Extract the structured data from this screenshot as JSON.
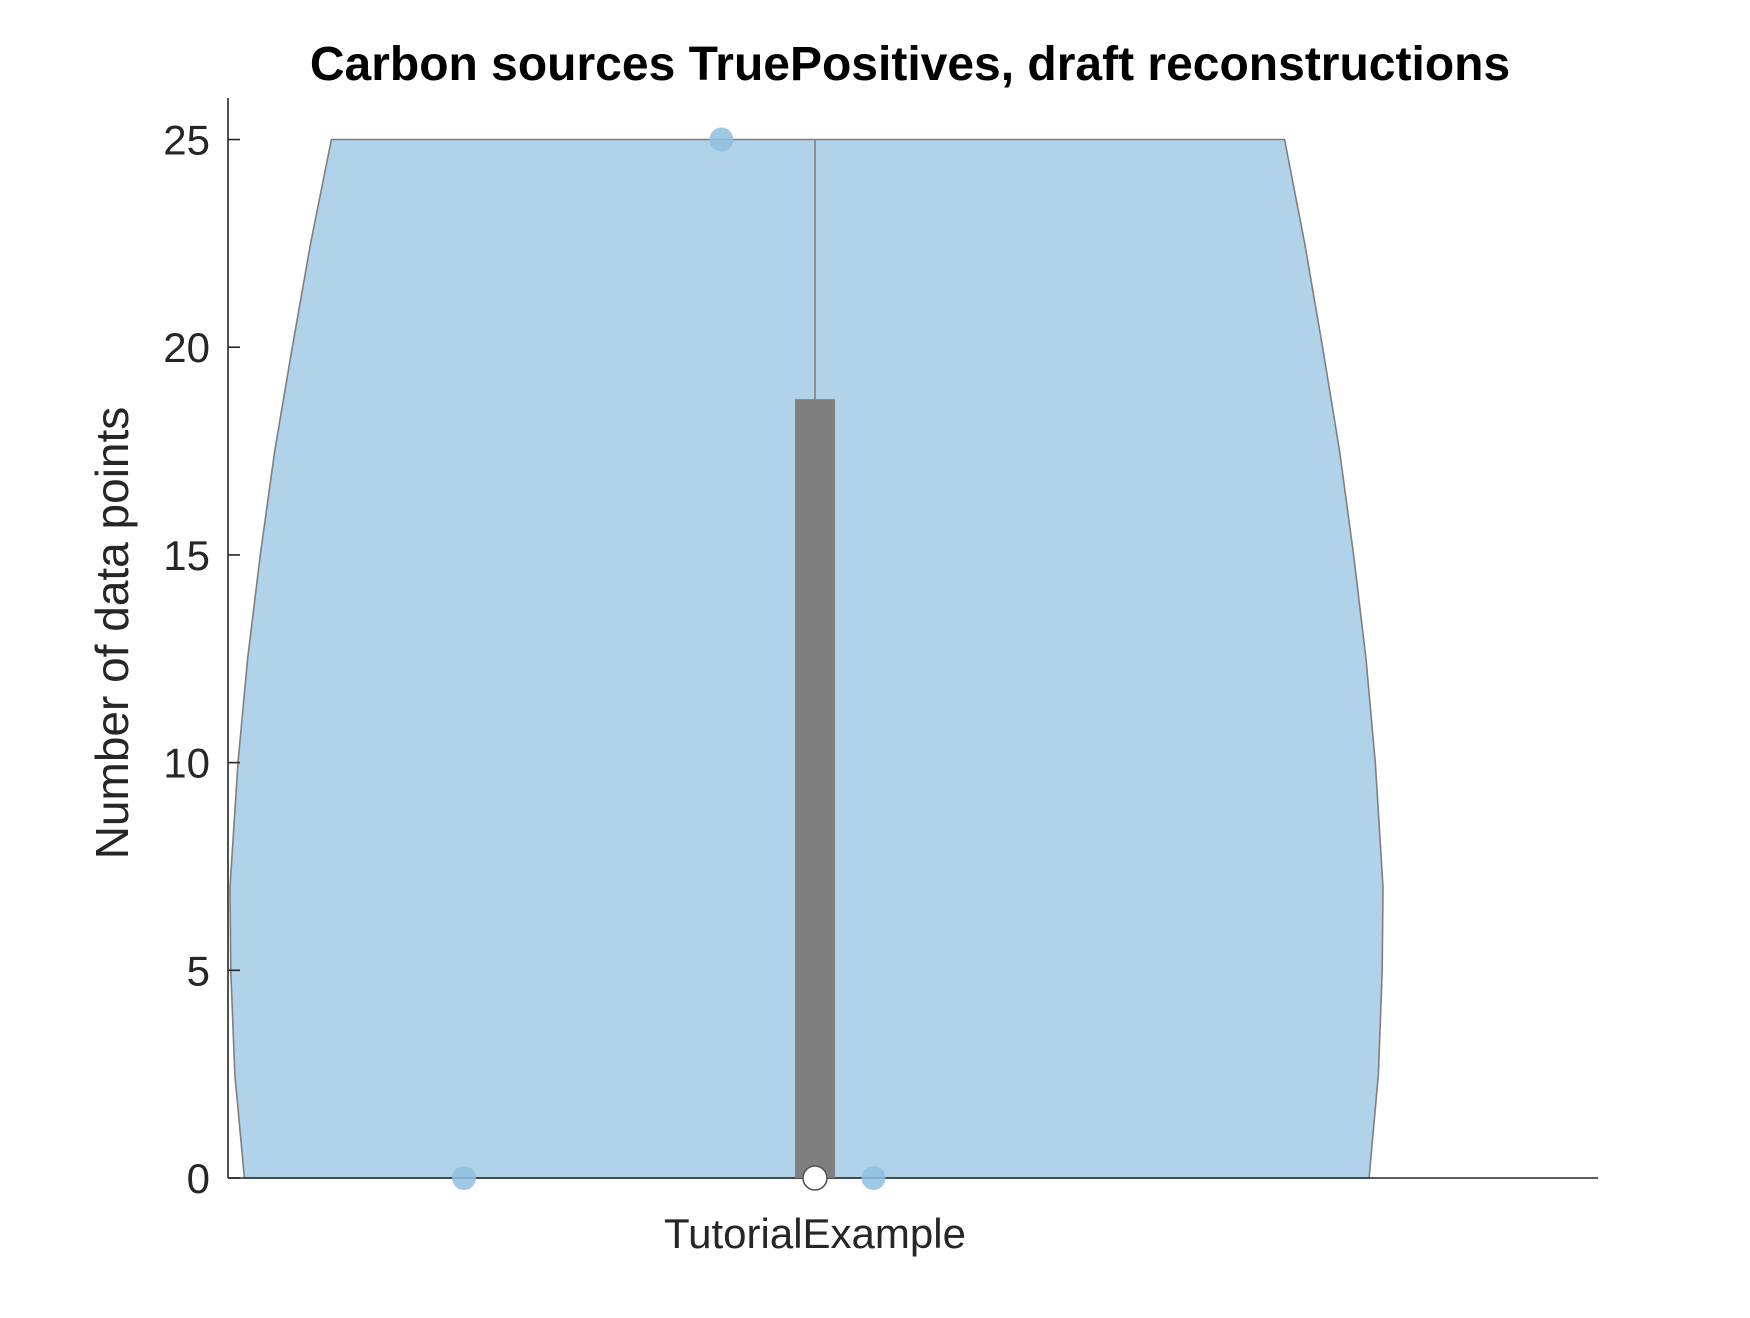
{
  "chart_data": {
    "type": "violin",
    "title": "Carbon sources TruePositives, draft reconstructions",
    "xlabel": "",
    "ylabel": "Number of data points",
    "categories": [
      "TutorialExample"
    ],
    "ylim": [
      0,
      26
    ],
    "yticks": [
      0,
      5,
      10,
      15,
      20,
      25
    ],
    "ytick_labels": [
      "0",
      "5",
      "10",
      "15",
      "20",
      "25"
    ],
    "grid": false,
    "legend": "none",
    "violin_color": "#b1d3ea",
    "violin_edge_color": "#7f7f7f",
    "point_color": "#8fbfe0",
    "box_color": "#7f7f7f",
    "median_color": "#ffffff",
    "series": [
      {
        "category": "TutorialExample",
        "points": [
          0,
          25,
          0
        ],
        "point_jitter": [
          -0.3,
          -0.08,
          0.05
        ],
        "median": 0,
        "q1": 0,
        "q3": 18.75,
        "whisker_low": 0,
        "whisker_high": 25,
        "density": [
          {
            "y": 0,
            "w": 0.715
          },
          {
            "y": 2.5,
            "w": 0.727
          },
          {
            "y": 5,
            "w": 0.732
          },
          {
            "y": 7,
            "w": 0.733
          },
          {
            "y": 10,
            "w": 0.723
          },
          {
            "y": 12.5,
            "w": 0.711
          },
          {
            "y": 15,
            "w": 0.695
          },
          {
            "y": 17.5,
            "w": 0.677
          },
          {
            "y": 20,
            "w": 0.655
          },
          {
            "y": 22.5,
            "w": 0.632
          },
          {
            "y": 25,
            "w": 0.606
          }
        ]
      }
    ]
  }
}
